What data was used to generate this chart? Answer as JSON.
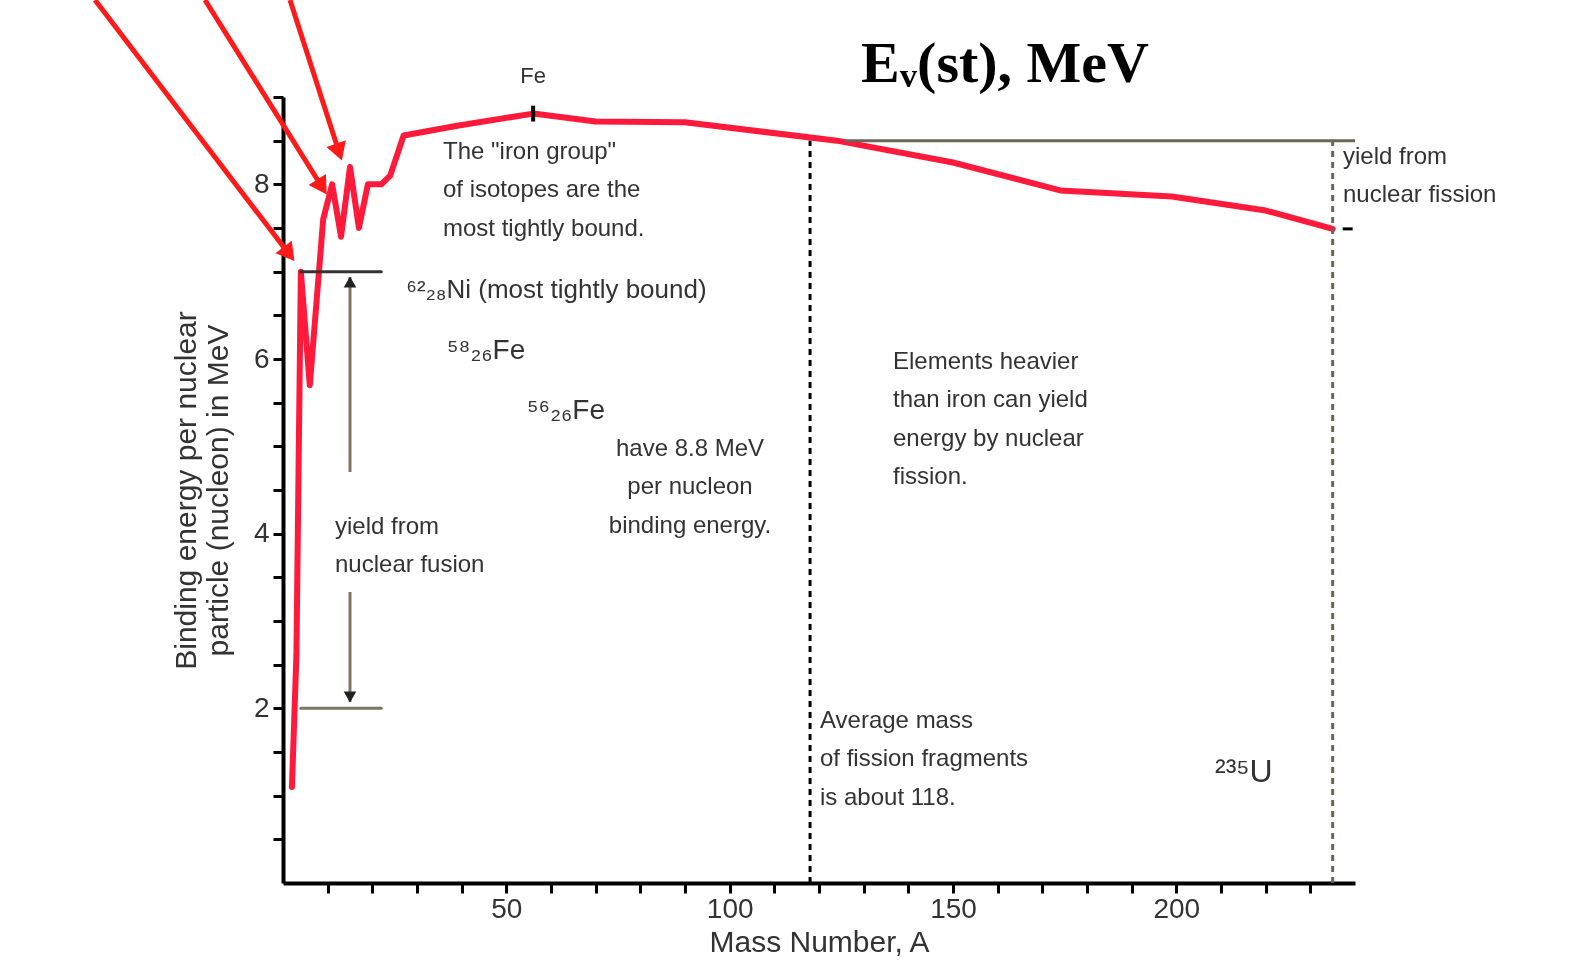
{
  "chart_data": {
    "type": "line",
    "title": "Eᵥ(st), MeV",
    "xlabel": "Mass Number, A",
    "ylabel": "Binding energy per nuclear\nparticle (nucleon) in MeV",
    "series": [
      {
        "color": "#ff1a3c",
        "x": [
          2,
          3,
          4,
          6,
          9,
          11,
          13,
          15,
          17,
          19,
          22,
          24,
          27,
          39,
          56,
          70,
          90,
          124,
          150,
          174,
          199,
          220,
          235
        ],
        "values": [
          1.1,
          2.6,
          7.0,
          5.7,
          7.6,
          8.0,
          7.4,
          8.2,
          7.5,
          8.0,
          8.0,
          8.1,
          8.56,
          8.67,
          8.81,
          8.72,
          8.71,
          8.5,
          8.25,
          7.93,
          7.86,
          7.7,
          7.49
        ]
      },
      {
        "type": "line",
        "color": "#333333",
        "x": [
          4,
          22
        ],
        "values": [
          7,
          7
        ]
      },
      {
        "type": "line",
        "color": "#7f7766",
        "x": [
          4,
          22
        ],
        "values": [
          2,
          2
        ]
      }
    ],
    "xlim": [
      0,
      240
    ],
    "ylim": [
      0,
      9
    ],
    "xticks": [
      {
        "value": 10,
        "label": null
      },
      {
        "value": 20,
        "label": null
      },
      {
        "value": 30,
        "label": null
      },
      {
        "value": 40,
        "label": null
      },
      50,
      {
        "value": 60,
        "label": null
      },
      {
        "value": 70,
        "label": null
      },
      {
        "value": 80,
        "label": null
      },
      {
        "value": 90,
        "label": null
      },
      100,
      {
        "value": 110,
        "label": null
      },
      {
        "value": 120,
        "label": null
      },
      {
        "value": 130,
        "label": null
      },
      {
        "value": 140,
        "label": null
      },
      150,
      {
        "value": 160,
        "label": null
      },
      {
        "value": 170,
        "label": null
      },
      {
        "value": 180,
        "label": null
      },
      {
        "value": 190,
        "label": null
      },
      200,
      {
        "value": 210,
        "label": null
      },
      {
        "value": 220,
        "label": null
      },
      {
        "value": 230,
        "label": null
      }
    ],
    "yticks": [
      {
        "value": 0.5,
        "label": null
      },
      {
        "value": 1,
        "label": null
      },
      {
        "value": 1.5,
        "label": null
      },
      2,
      {
        "value": 2.5,
        "label": null
      },
      {
        "value": 3,
        "label": null
      },
      {
        "value": 3.5,
        "label": null
      },
      4,
      {
        "value": 4.5,
        "label": null
      },
      {
        "value": 5,
        "label": null
      },
      {
        "value": 5.5,
        "label": null
      },
      6,
      {
        "value": 6.5,
        "label": null
      },
      {
        "value": 7,
        "label": null
      },
      {
        "value": 7.5,
        "label": null
      },
      8,
      {
        "value": 8.5,
        "label": null
      },
      {
        "value": 9,
        "label": null
      }
    ],
    "ref_lines": [
      {
        "axis": "y",
        "value": 8.5,
        "color": "#6e6655"
      },
      {
        "axis": "x",
        "value": 118,
        "color": "#000000",
        "line_style": "dashed"
      },
      {
        "axis": "x",
        "value": 235,
        "color": "#6e6655",
        "line_style": "dashed"
      }
    ],
    "annotations": [
      {
        "text": "Fe",
        "x": 56,
        "y": 8.81
      },
      "The \"iron group\"\nof isotopes are the\nmost tightly bound.",
      {
        "text": "⁶²₂₈Ni  (most tightly bound)",
        "x": 22,
        "y": 7
      },
      "⁵⁸₂₆Fe",
      "⁵⁶₂₆Fe",
      "have 8.8 MeV\nper nucleon\nbinding energy.",
      "yield from\nnuclear fusion",
      "Elements heavier\nthan iron can yield\nenergy by nuclear\nfission.",
      "Average mass\nof fission fragments\nis about 118.",
      "²³⁵U",
      "yield from\nnuclear fission"
    ]
  }
}
